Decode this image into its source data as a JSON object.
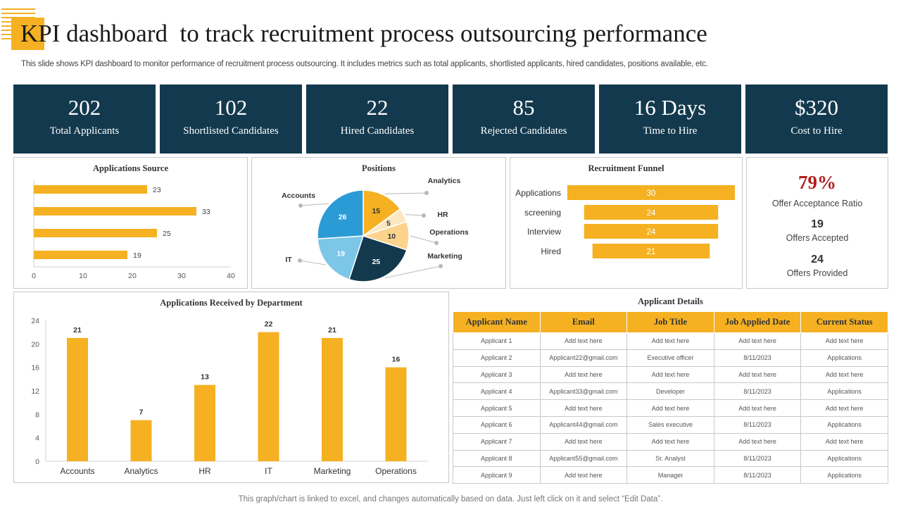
{
  "header": {
    "title": "KPI dashboard  to track recruitment process outsourcing performance",
    "subtitle": "This slide shows KPI dashboard to monitor performance of recruitment process outsourcing. It includes metrics such as total applicants, shortlisted applicants, hired candidates, positions available, etc."
  },
  "kpis": [
    {
      "value": "202",
      "label": "Total Applicants"
    },
    {
      "value": "102",
      "label": "Shortlisted  Candidates"
    },
    {
      "value": "22",
      "label": "Hired Candidates"
    },
    {
      "value": "85",
      "label": "Rejected Candidates"
    },
    {
      "value": "16 Days",
      "label": "Time  to Hire"
    },
    {
      "value": "$320",
      "label": "Cost to Hire"
    }
  ],
  "colors": {
    "accent": "#f5b121",
    "navy": "#13394e",
    "ratio": "#b01e1e"
  },
  "offer": {
    "ratio": "79%",
    "ratio_label": "Offer Acceptance Ratio",
    "accepted_value": "19",
    "accepted_label": "Offers Accepted",
    "provided_value": "24",
    "provided_label": "Offers Provided"
  },
  "chart_data": [
    {
      "type": "bar",
      "orientation": "horizontal",
      "title": "Applications  Source",
      "values": [
        23,
        33,
        25,
        19
      ],
      "xlim": [
        0,
        40
      ],
      "xticks": [
        0,
        10,
        20,
        30,
        40
      ]
    },
    {
      "type": "pie",
      "title": "Positions",
      "slices": [
        {
          "label": "Analytics",
          "value": 15,
          "color": "#f5b121"
        },
        {
          "label": "HR",
          "value": 5,
          "color": "#fbe8c0"
        },
        {
          "label": "Operations",
          "value": 10,
          "color": "#fcd38c"
        },
        {
          "label": "Marketing",
          "value": 25,
          "color": "#13394e"
        },
        {
          "label": "IT",
          "value": 19,
          "color": "#7cc6e8"
        },
        {
          "label": "Accounts",
          "value": 26,
          "color": "#2b9bd6"
        }
      ]
    },
    {
      "type": "bar",
      "orientation": "horizontal",
      "title": "Recruitment  Funnel",
      "categories": [
        "Applications",
        "screening",
        "Interview",
        "Hired"
      ],
      "values": [
        30,
        24,
        24,
        21
      ]
    },
    {
      "type": "bar",
      "title": "Applications  Received  by  Department",
      "categories": [
        "Accounts",
        "Analytics",
        "HR",
        "IT",
        "Marketing",
        "Operations"
      ],
      "values": [
        21,
        7,
        13,
        22,
        21,
        16
      ],
      "ylim": [
        0,
        24
      ],
      "yticks": [
        0,
        4,
        8,
        12,
        16,
        20,
        24
      ]
    }
  ],
  "applicant_details": {
    "title": "Applicant  Details",
    "columns": [
      "Applicant  Name",
      "Email",
      "Job Title",
      "Job Applied  Date",
      "Current  Status"
    ],
    "rows": [
      [
        "Applicant 1",
        "Add text here",
        "Add text here",
        "Add text here",
        "Add text here"
      ],
      [
        "Applicant 2",
        "Applicant22@gmail.com",
        "Executive officer",
        "8/11/2023",
        "Applications"
      ],
      [
        "Applicant 3",
        "Add text here",
        "Add text here",
        "Add text here",
        "Add text here"
      ],
      [
        "Applicant 4",
        "Applicant33@gmail.com",
        "Developer",
        "8/11/2023",
        "Applications"
      ],
      [
        "Applicant 5",
        "Add text here",
        "Add text here",
        "Add text here",
        "Add text here"
      ],
      [
        "Applicant 6",
        "Applicant44@gmail.com",
        "Sales executive",
        "8/11/2023",
        "Applications"
      ],
      [
        "Applicant 7",
        "Add text here",
        "Add text here",
        "Add text here",
        "Add text here"
      ],
      [
        "Applicant 8",
        "Applicant55@gmail.com",
        "Sr. Analyst",
        "8/11/2023",
        "Applications"
      ],
      [
        "Applicant 9",
        "Add text here",
        "Manager",
        "8/11/2023",
        "Applications"
      ]
    ]
  },
  "footer": "This graph/chart is linked to excel,  and changes automatically based on data. Just left click on it and select “Edit Data”."
}
